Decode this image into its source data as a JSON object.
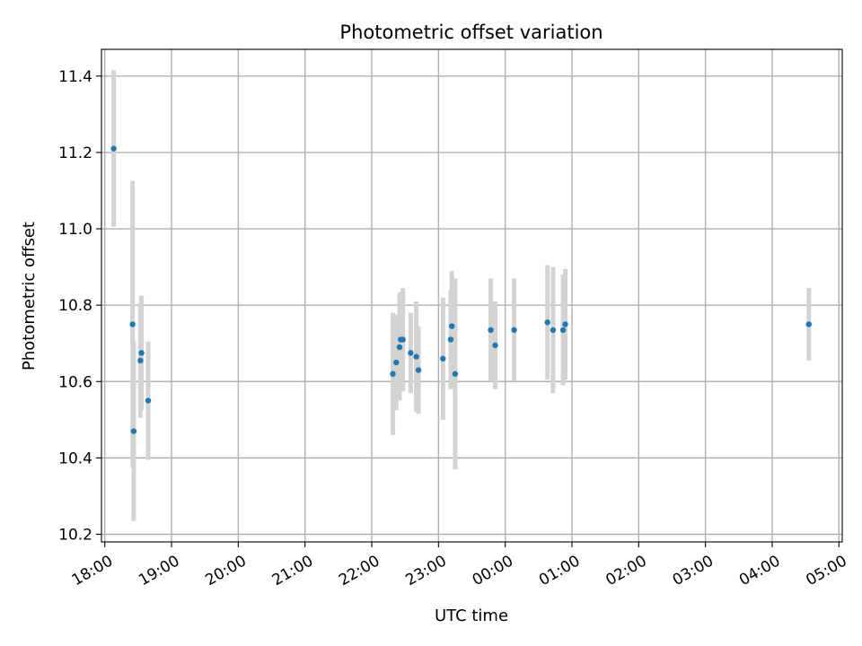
{
  "chart_data": {
    "type": "scatter",
    "title": "Photometric offset variation",
    "xlabel": "UTC time",
    "ylabel": "Photometric offset",
    "x_ticks": [
      "18:00",
      "19:00",
      "20:00",
      "21:00",
      "22:00",
      "23:00",
      "00:00",
      "01:00",
      "02:00",
      "03:00",
      "04:00",
      "05:00"
    ],
    "y_ticks": [
      "10.2",
      "10.4",
      "10.6",
      "10.8",
      "11.0",
      "11.2",
      "11.4"
    ],
    "xlim": [
      "17:57",
      "05:03"
    ],
    "ylim": [
      10.18,
      11.47
    ],
    "grid": true,
    "colors": {
      "points": "#1f77b4",
      "error_bars": "#d3d3d3"
    },
    "points": [
      {
        "x": "18:08",
        "y": 11.21,
        "yerr": 0.205
      },
      {
        "x": "18:25",
        "y": 10.75,
        "yerr": 0.375
      },
      {
        "x": "18:26",
        "y": 10.47,
        "yerr": 0.235
      },
      {
        "x": "18:32",
        "y": 10.655,
        "yerr": 0.15
      },
      {
        "x": "18:33",
        "y": 10.675,
        "yerr": 0.15
      },
      {
        "x": "18:39",
        "y": 10.55,
        "yerr": 0.155
      },
      {
        "x": "22:19",
        "y": 10.62,
        "yerr": 0.16
      },
      {
        "x": "22:22",
        "y": 10.65,
        "yerr": 0.125
      },
      {
        "x": "22:25",
        "y": 10.69,
        "yerr": 0.14
      },
      {
        "x": "22:26",
        "y": 10.71,
        "yerr": 0.125
      },
      {
        "x": "22:28",
        "y": 10.71,
        "yerr": 0.135
      },
      {
        "x": "22:35",
        "y": 10.675,
        "yerr": 0.105
      },
      {
        "x": "22:40",
        "y": 10.665,
        "yerr": 0.145
      },
      {
        "x": "22:42",
        "y": 10.63,
        "yerr": 0.115
      },
      {
        "x": "23:04",
        "y": 10.66,
        "yerr": 0.16
      },
      {
        "x": "23:11",
        "y": 10.71,
        "yerr": 0.13
      },
      {
        "x": "23:12",
        "y": 10.745,
        "yerr": 0.145
      },
      {
        "x": "23:15",
        "y": 10.62,
        "yerr": 0.25
      },
      {
        "x": "23:47",
        "y": 10.735,
        "yerr": 0.135
      },
      {
        "x": "23:51",
        "y": 10.695,
        "yerr": 0.115
      },
      {
        "x": "00:08",
        "y": 10.735,
        "yerr": 0.135
      },
      {
        "x": "00:38",
        "y": 10.755,
        "yerr": 0.15
      },
      {
        "x": "00:43",
        "y": 10.735,
        "yerr": 0.165
      },
      {
        "x": "00:52",
        "y": 10.735,
        "yerr": 0.145
      },
      {
        "x": "00:54",
        "y": 10.75,
        "yerr": 0.145
      },
      {
        "x": "04:33",
        "y": 10.75,
        "yerr": 0.095
      }
    ]
  }
}
